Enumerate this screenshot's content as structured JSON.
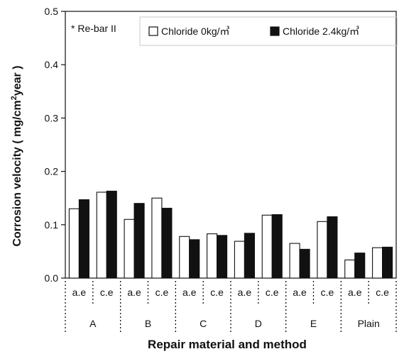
{
  "chart_data": {
    "type": "bar",
    "note": "* Re-bar II",
    "xlabel": "Repair material and method",
    "ylabel_parts": [
      "Corrosion velocity ( mg/cm",
      "2",
      "year )"
    ],
    "ylim": [
      0,
      0.5
    ],
    "yticks": [
      "0.0",
      "0.1",
      "0.2",
      "0.3",
      "0.4",
      "0.5"
    ],
    "groups": [
      "A",
      "B",
      "C",
      "D",
      "E",
      "Plain"
    ],
    "methods": [
      "a.e",
      "c.e"
    ],
    "categories": [
      "A a.e",
      "A c.e",
      "B a.e",
      "B c.e",
      "C a.e",
      "C c.e",
      "D a.e",
      "D c.e",
      "E a.e",
      "E c.e",
      "Plain a.e",
      "Plain c.e"
    ],
    "series": [
      {
        "name": "Chloride 0kg/㎥",
        "color": "#ffffff",
        "values": [
          0.13,
          0.161,
          0.11,
          0.15,
          0.078,
          0.083,
          0.069,
          0.118,
          0.065,
          0.106,
          0.034,
          0.057
        ]
      },
      {
        "name": "Chloride 2.4kg/㎥",
        "color": "#111111",
        "values": [
          0.147,
          0.163,
          0.14,
          0.131,
          0.072,
          0.08,
          0.084,
          0.119,
          0.054,
          0.115,
          0.047,
          0.058
        ]
      }
    ],
    "legend_position": "top-right",
    "grid": false
  }
}
